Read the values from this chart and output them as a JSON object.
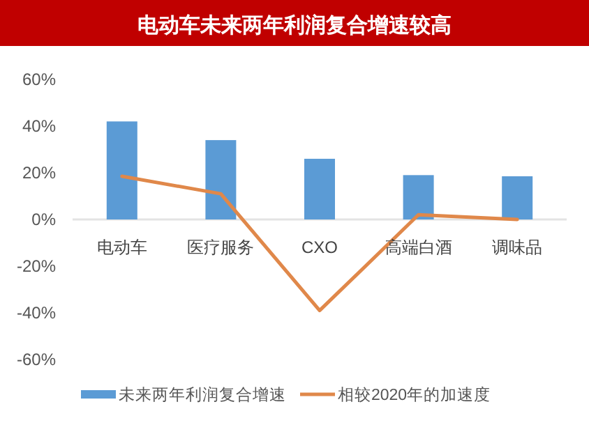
{
  "chart_data": {
    "type": "bar",
    "title": "电动车未来两年利润复合增速较高",
    "categories": [
      "电动车",
      "医疗服务",
      "CXO",
      "高端白酒",
      "调味品"
    ],
    "series": [
      {
        "name": "未来两年利润复合增速",
        "color": "#5b9bd5",
        "values": [
          42,
          34,
          26,
          19,
          18.5
        ]
      },
      {
        "name": "相较2020年的加速度",
        "type": "line",
        "color": "#e0884a",
        "values": [
          18.5,
          11,
          -39,
          2,
          0
        ],
        "marker": "none"
      }
    ],
    "ylim": [
      -60,
      60
    ],
    "yticks": [
      {
        "value": -60,
        "label": "-60%"
      },
      {
        "value": -40,
        "label": "-40%"
      },
      {
        "value": -20,
        "label": "-20%"
      },
      {
        "value": 0,
        "label": "0%"
      },
      {
        "value": 20,
        "label": "20%"
      },
      {
        "value": 40,
        "label": "40%"
      },
      {
        "value": 60,
        "label": "60%"
      }
    ],
    "legend": "bottom",
    "grid": false
  }
}
